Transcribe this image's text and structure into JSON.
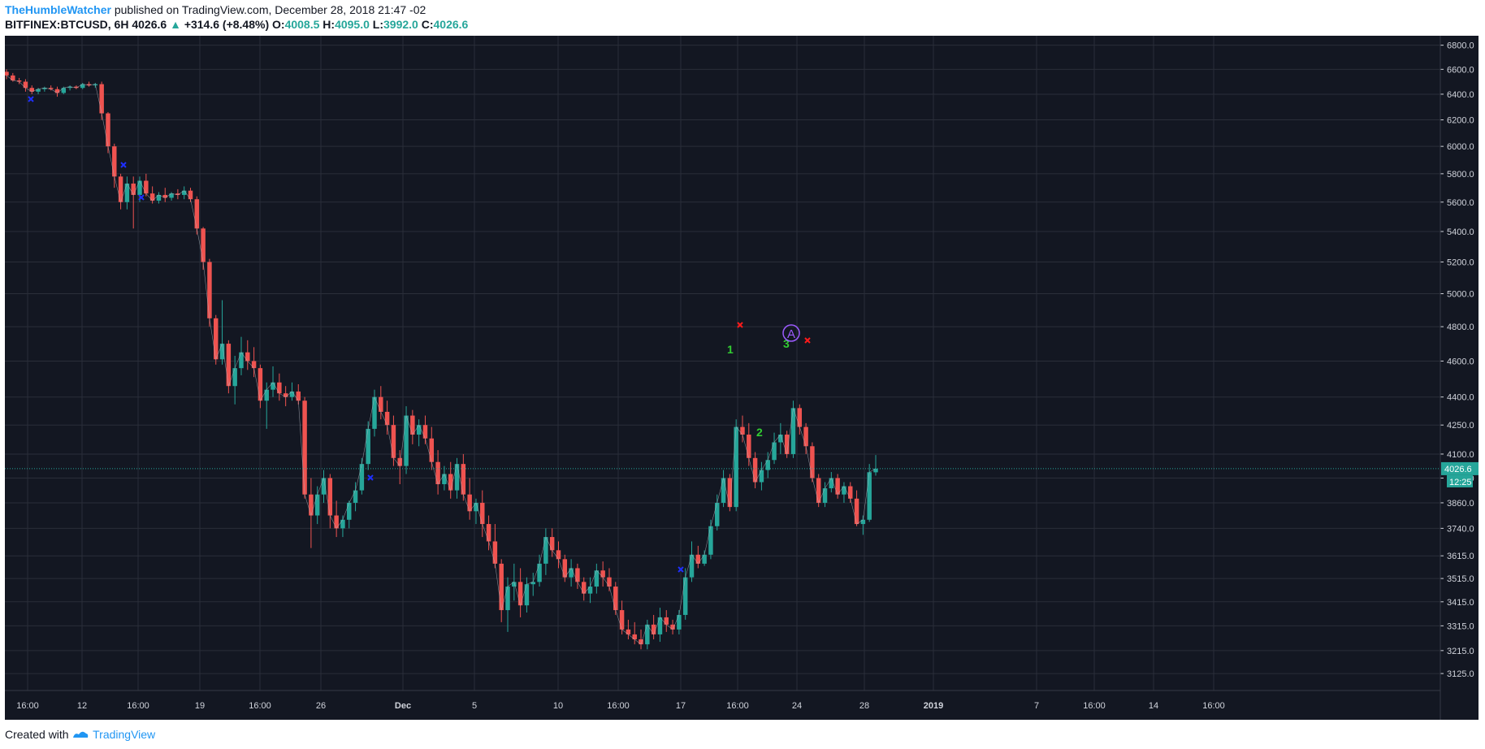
{
  "header": {
    "author": "TheHumbleWatcher",
    "published_text": "published on TradingView.com, December 28, 2018 21:47 -02",
    "symbol": "BITFINEX:BTCUSD, 6H",
    "last": "4026.6",
    "change": "+314.6 (+8.48%)",
    "o_label": "O:",
    "o_val": "4008.5",
    "h_label": "H:",
    "h_val": "4095.0",
    "l_label": "L:",
    "l_val": "3992.0",
    "c_label": "C:",
    "c_val": "4026.6"
  },
  "footer": {
    "created_with": "Created with",
    "brand": "TradingView"
  },
  "colors": {
    "background": "#131722",
    "grid": "#2a2e39",
    "up": "#26a69a",
    "down": "#ef5350",
    "axis_text": "#d1d4dc",
    "price_line": "#26a69a",
    "wave_label": "#32cd32",
    "blue_marker": "#1e2fff",
    "red_marker": "#ff1a1a",
    "circle_marker": "#9c5bff"
  },
  "chart_data": {
    "type": "candlestick",
    "y_scale": "log",
    "ylim": [
      3060,
      6880
    ],
    "y_ticks": [
      "6800.0",
      "6600.0",
      "6400.0",
      "6200.0",
      "6000.0",
      "5800.0",
      "5600.0",
      "5400.0",
      "5200.0",
      "5000.0",
      "4800.0",
      "4600.0",
      "4400.0",
      "4250.0",
      "4100.0",
      "3980.0",
      "3860.0",
      "3740.0",
      "3615.0",
      "3515.0",
      "3415.0",
      "3315.0",
      "3215.0",
      "3125.0"
    ],
    "x_ticks": [
      "16:00",
      "12",
      "16:00",
      "19",
      "16:00",
      "26",
      "Dec",
      "5",
      "10",
      "16:00",
      "17",
      "16:00",
      "24",
      "28",
      "2019",
      "7",
      "16:00",
      "14",
      "16:00"
    ],
    "candles_ohlc_6h": [
      [
        6580,
        6600,
        6520,
        6550
      ],
      [
        6550,
        6570,
        6500,
        6510
      ],
      [
        6510,
        6530,
        6480,
        6500
      ],
      [
        6500,
        6520,
        6420,
        6450
      ],
      [
        6450,
        6470,
        6400,
        6420
      ],
      [
        6420,
        6450,
        6400,
        6440
      ],
      [
        6440,
        6460,
        6420,
        6450
      ],
      [
        6450,
        6470,
        6430,
        6440
      ],
      [
        6440,
        6460,
        6380,
        6410
      ],
      [
        6410,
        6460,
        6400,
        6450
      ],
      [
        6450,
        6470,
        6430,
        6460
      ],
      [
        6460,
        6470,
        6440,
        6450
      ],
      [
        6450,
        6490,
        6440,
        6480
      ],
      [
        6480,
        6500,
        6460,
        6470
      ],
      [
        6470,
        6490,
        6450,
        6480
      ],
      [
        6480,
        6500,
        6200,
        6250
      ],
      [
        6250,
        6260,
        5950,
        6000
      ],
      [
        6000,
        6020,
        5700,
        5780
      ],
      [
        5780,
        5800,
        5550,
        5600
      ],
      [
        5600,
        5780,
        5550,
        5730
      ],
      [
        5730,
        5780,
        5420,
        5650
      ],
      [
        5650,
        5780,
        5600,
        5750
      ],
      [
        5750,
        5800,
        5640,
        5660
      ],
      [
        5660,
        5710,
        5590,
        5610
      ],
      [
        5610,
        5670,
        5590,
        5650
      ],
      [
        5650,
        5700,
        5600,
        5630
      ],
      [
        5630,
        5670,
        5610,
        5660
      ],
      [
        5660,
        5690,
        5620,
        5650
      ],
      [
        5650,
        5710,
        5620,
        5680
      ],
      [
        5680,
        5700,
        5600,
        5620
      ],
      [
        5620,
        5640,
        5380,
        5420
      ],
      [
        5420,
        5430,
        5150,
        5200
      ],
      [
        5200,
        5220,
        4800,
        4850
      ],
      [
        4850,
        4870,
        4580,
        4610
      ],
      [
        4610,
        4960,
        4580,
        4700
      ],
      [
        4700,
        4720,
        4420,
        4460
      ],
      [
        4460,
        4630,
        4360,
        4560
      ],
      [
        4560,
        4740,
        4520,
        4650
      ],
      [
        4650,
        4720,
        4550,
        4600
      ],
      [
        4600,
        4680,
        4510,
        4560
      ],
      [
        4560,
        4580,
        4340,
        4380
      ],
      [
        4380,
        4480,
        4230,
        4440
      ],
      [
        4440,
        4570,
        4400,
        4480
      ],
      [
        4480,
        4530,
        4380,
        4420
      ],
      [
        4420,
        4460,
        4350,
        4400
      ],
      [
        4400,
        4480,
        4380,
        4430
      ],
      [
        4430,
        4470,
        4360,
        4380
      ],
      [
        4380,
        4400,
        3880,
        3900
      ],
      [
        3900,
        3980,
        3650,
        3800
      ],
      [
        3800,
        3940,
        3760,
        3900
      ],
      [
        3900,
        4020,
        3860,
        3980
      ],
      [
        3980,
        4000,
        3740,
        3800
      ],
      [
        3800,
        3870,
        3700,
        3740
      ],
      [
        3740,
        3800,
        3700,
        3780
      ],
      [
        3780,
        3870,
        3740,
        3860
      ],
      [
        3860,
        3960,
        3820,
        3920
      ],
      [
        3920,
        4080,
        3900,
        4050
      ],
      [
        4050,
        4270,
        4020,
        4230
      ],
      [
        4230,
        4440,
        4190,
        4400
      ],
      [
        4400,
        4460,
        4280,
        4320
      ],
      [
        4320,
        4380,
        4200,
        4250
      ],
      [
        4250,
        4300,
        4040,
        4080
      ],
      [
        4080,
        4120,
        3950,
        4040
      ],
      [
        4040,
        4350,
        4000,
        4300
      ],
      [
        4300,
        4330,
        4150,
        4200
      ],
      [
        4200,
        4280,
        4140,
        4250
      ],
      [
        4250,
        4300,
        4150,
        4180
      ],
      [
        4180,
        4240,
        4020,
        4060
      ],
      [
        4060,
        4120,
        3900,
        3950
      ],
      [
        3950,
        4040,
        3920,
        4000
      ],
      [
        4000,
        4060,
        3880,
        3920
      ],
      [
        3920,
        4080,
        3880,
        4050
      ],
      [
        4050,
        4100,
        3870,
        3900
      ],
      [
        3900,
        3980,
        3780,
        3820
      ],
      [
        3820,
        3880,
        3760,
        3860
      ],
      [
        3860,
        3920,
        3700,
        3760
      ],
      [
        3760,
        3800,
        3640,
        3680
      ],
      [
        3680,
        3760,
        3560,
        3580
      ],
      [
        3580,
        3600,
        3330,
        3380
      ],
      [
        3380,
        3520,
        3290,
        3480
      ],
      [
        3480,
        3580,
        3420,
        3500
      ],
      [
        3500,
        3560,
        3350,
        3400
      ],
      [
        3400,
        3520,
        3370,
        3490
      ],
      [
        3490,
        3540,
        3440,
        3500
      ],
      [
        3500,
        3620,
        3480,
        3580
      ],
      [
        3580,
        3740,
        3530,
        3700
      ],
      [
        3700,
        3740,
        3610,
        3640
      ],
      [
        3640,
        3680,
        3560,
        3600
      ],
      [
        3600,
        3620,
        3500,
        3520
      ],
      [
        3520,
        3600,
        3480,
        3560
      ],
      [
        3560,
        3580,
        3470,
        3500
      ],
      [
        3500,
        3520,
        3420,
        3450
      ],
      [
        3450,
        3520,
        3410,
        3480
      ],
      [
        3480,
        3580,
        3450,
        3550
      ],
      [
        3550,
        3590,
        3480,
        3520
      ],
      [
        3520,
        3560,
        3460,
        3480
      ],
      [
        3480,
        3500,
        3360,
        3380
      ],
      [
        3380,
        3420,
        3280,
        3300
      ],
      [
        3300,
        3340,
        3260,
        3280
      ],
      [
        3280,
        3330,
        3240,
        3260
      ],
      [
        3260,
        3300,
        3220,
        3240
      ],
      [
        3240,
        3340,
        3220,
        3320
      ],
      [
        3320,
        3360,
        3260,
        3280
      ],
      [
        3280,
        3390,
        3250,
        3350
      ],
      [
        3350,
        3380,
        3290,
        3320
      ],
      [
        3320,
        3340,
        3280,
        3300
      ],
      [
        3300,
        3380,
        3280,
        3360
      ],
      [
        3360,
        3560,
        3340,
        3520
      ],
      [
        3520,
        3680,
        3500,
        3620
      ],
      [
        3620,
        3660,
        3560,
        3580
      ],
      [
        3580,
        3640,
        3570,
        3620
      ],
      [
        3620,
        3780,
        3600,
        3750
      ],
      [
        3750,
        3900,
        3730,
        3860
      ],
      [
        3860,
        4020,
        3840,
        3980
      ],
      [
        3980,
        4000,
        3820,
        3840
      ],
      [
        3840,
        4280,
        3820,
        4240
      ],
      [
        4240,
        4300,
        4160,
        4200
      ],
      [
        4200,
        4260,
        4040,
        4080
      ],
      [
        4080,
        4110,
        3930,
        3960
      ],
      [
        3960,
        4060,
        3920,
        4020
      ],
      [
        4020,
        4110,
        3980,
        4070
      ],
      [
        4070,
        4210,
        4050,
        4160
      ],
      [
        4160,
        4260,
        4100,
        4200
      ],
      [
        4200,
        4220,
        4080,
        4100
      ],
      [
        4100,
        4380,
        4080,
        4340
      ],
      [
        4340,
        4360,
        4200,
        4240
      ],
      [
        4240,
        4260,
        4100,
        4140
      ],
      [
        4140,
        4160,
        3960,
        3980
      ],
      [
        3980,
        4000,
        3840,
        3860
      ],
      [
        3860,
        3960,
        3840,
        3930
      ],
      [
        3930,
        4010,
        3910,
        3980
      ],
      [
        3980,
        4000,
        3880,
        3900
      ],
      [
        3900,
        3960,
        3860,
        3940
      ],
      [
        3940,
        3960,
        3860,
        3880
      ],
      [
        3880,
        3920,
        3750,
        3760
      ],
      [
        3760,
        3800,
        3710,
        3780
      ],
      [
        3780,
        4050,
        3770,
        4009
      ],
      [
        4008.5,
        4095,
        3992,
        4026.6
      ]
    ],
    "current_price": "4026.6",
    "current_price_countdown": "12:25",
    "wave_labels": [
      "1",
      "2",
      "3"
    ],
    "circle_label": "A"
  }
}
